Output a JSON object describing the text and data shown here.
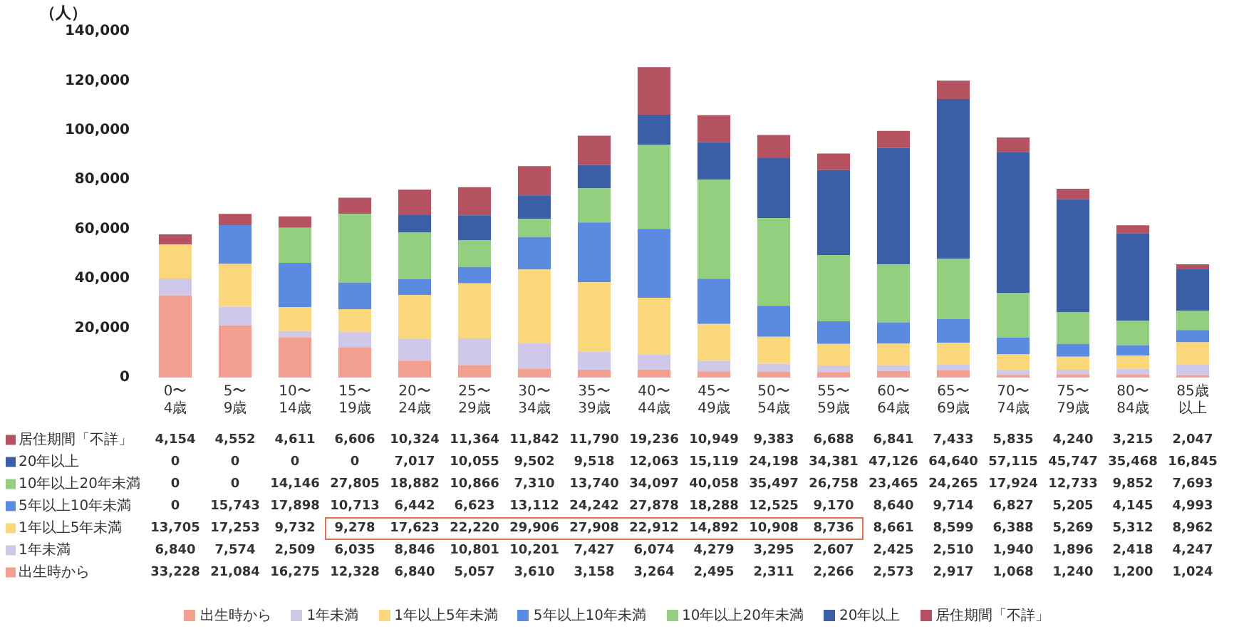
{
  "chart_data": {
    "type": "bar",
    "stacked": true,
    "ylabel": "（人）",
    "categories": [
      "0〜4歳",
      "5〜9歳",
      "10〜14歳",
      "15〜19歳",
      "20〜24歳",
      "25〜29歳",
      "30〜34歳",
      "35〜39歳",
      "40〜44歳",
      "45〜49歳",
      "50〜54歳",
      "55〜59歳",
      "60〜64歳",
      "65〜69歳",
      "70〜74歳",
      "75〜79歳",
      "80〜84歳",
      "85歳以上"
    ],
    "series": [
      {
        "name": "出生時から",
        "color": "#f4a090",
        "values": [
          33228,
          21084,
          16275,
          12328,
          6840,
          5057,
          3610,
          3158,
          3264,
          2495,
          2311,
          2266,
          2573,
          2917,
          1068,
          1240,
          1200,
          1024
        ],
        "value_labels": [
          "33,228",
          "21,084",
          "16,275",
          "12,328",
          "6,840",
          "5,057",
          "3,610",
          "3,158",
          "3,264",
          "2,495",
          "2,311",
          "2,266",
          "2,573",
          "2,917",
          "1,068",
          "1,240",
          "1,200",
          "1,024"
        ]
      },
      {
        "name": "1年未満",
        "color": "#cfc8e8",
        "values": [
          6840,
          7574,
          2509,
          6035,
          8846,
          10801,
          10201,
          7427,
          6074,
          4279,
          3295,
          2607,
          2425,
          2510,
          1940,
          1896,
          2418,
          4247
        ],
        "value_labels": [
          "6,840",
          "7,574",
          "2,509",
          "6,035",
          "8,846",
          "10,801",
          "10,201",
          "7,427",
          "6,074",
          "4,279",
          "3,295",
          "2,607",
          "2,425",
          "2,510",
          "1,940",
          "1,896",
          "2,418",
          "4,247"
        ]
      },
      {
        "name": "1年以上5年未満",
        "color": "#fad77a",
        "values": [
          13705,
          17253,
          9732,
          9278,
          17623,
          22220,
          29906,
          27908,
          22912,
          14892,
          10908,
          8736,
          8661,
          8599,
          6388,
          5269,
          5312,
          8962
        ],
        "value_labels": [
          "13,705",
          "17,253",
          "9,732",
          "9,278",
          "17,623",
          "22,220",
          "29,906",
          "27,908",
          "22,912",
          "14,892",
          "10,908",
          "8,736",
          "8,661",
          "8,599",
          "6,388",
          "5,269",
          "5,312",
          "8,962"
        ]
      },
      {
        "name": "5年以上10年未満",
        "color": "#5b8be0",
        "values": [
          0,
          15743,
          17898,
          10713,
          6442,
          6623,
          13112,
          24242,
          27878,
          18288,
          12525,
          9170,
          8640,
          9714,
          6827,
          5205,
          4145,
          4993
        ],
        "value_labels": [
          "0",
          "15,743",
          "17,898",
          "10,713",
          "6,442",
          "6,623",
          "13,112",
          "24,242",
          "27,878",
          "18,288",
          "12,525",
          "9,170",
          "8,640",
          "9,714",
          "6,827",
          "5,205",
          "4,145",
          "4,993"
        ]
      },
      {
        "name": "10年以上20年未満",
        "color": "#93cf7e",
        "values": [
          0,
          0,
          14146,
          27805,
          18882,
          10866,
          7310,
          13740,
          34097,
          40058,
          35497,
          26758,
          23465,
          24265,
          17924,
          12733,
          9852,
          7693
        ],
        "value_labels": [
          "0",
          "0",
          "14,146",
          "27,805",
          "18,882",
          "10,866",
          "7,310",
          "13,740",
          "34,097",
          "40,058",
          "35,497",
          "26,758",
          "23,465",
          "24,265",
          "17,924",
          "12,733",
          "9,852",
          "7,693"
        ]
      },
      {
        "name": "20年以上",
        "color": "#3a5fa6",
        "values": [
          0,
          0,
          0,
          0,
          7017,
          10055,
          9502,
          9518,
          12063,
          15119,
          24198,
          34381,
          47126,
          64640,
          57115,
          45747,
          35468,
          16845
        ],
        "value_labels": [
          "0",
          "0",
          "0",
          "0",
          "7,017",
          "10,055",
          "9,502",
          "9,518",
          "12,063",
          "15,119",
          "24,198",
          "34,381",
          "47,126",
          "64,640",
          "57,115",
          "45,747",
          "35,468",
          "16,845"
        ]
      },
      {
        "name": "居住期間「不詳」",
        "color": "#b5525f",
        "values": [
          4154,
          4552,
          4611,
          6606,
          10324,
          11364,
          11842,
          11790,
          19236,
          10949,
          9383,
          6688,
          6841,
          7433,
          5835,
          4240,
          3215,
          2047
        ],
        "value_labels": [
          "4,154",
          "4,552",
          "4,611",
          "6,606",
          "10,324",
          "11,364",
          "11,842",
          "11,790",
          "19,236",
          "10,949",
          "9,383",
          "6,688",
          "6,841",
          "7,433",
          "5,835",
          "4,240",
          "3,215",
          "2,047"
        ]
      }
    ],
    "ylim": [
      0,
      140000
    ],
    "yticks": [
      {
        "value": 0,
        "label": "0"
      },
      {
        "value": 20000,
        "label": "20,000"
      },
      {
        "value": 40000,
        "label": "40,000"
      },
      {
        "value": 60000,
        "label": "60,000"
      },
      {
        "value": 80000,
        "label": "80,000"
      },
      {
        "value": 100000,
        "label": "100,000"
      },
      {
        "value": 120000,
        "label": "120,000"
      },
      {
        "value": 140000,
        "label": "140,000"
      }
    ],
    "legend": "bottom"
  }
}
